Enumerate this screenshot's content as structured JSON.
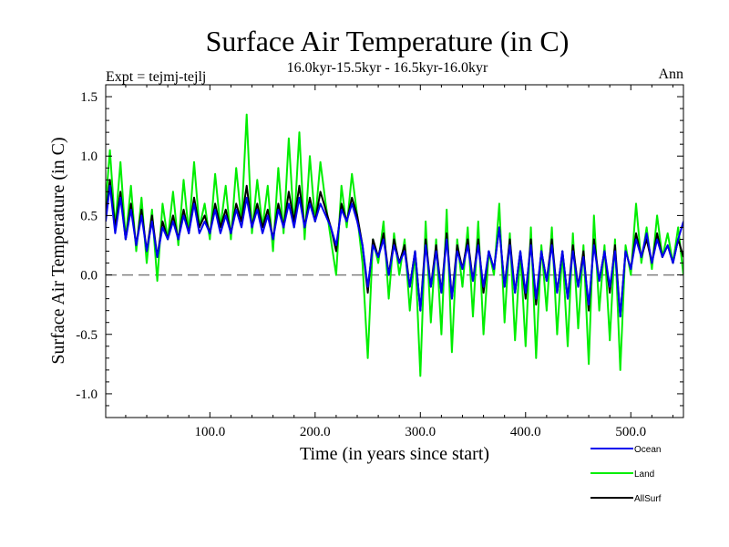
{
  "chart_data": {
    "type": "line",
    "title": "Surface Air Temperature (in C)",
    "subtitle": "16.0kyr-15.5kyr - 16.5kyr-16.0kyr",
    "left_note": "Expt = tejmj-tejlj",
    "right_note": "Ann",
    "xlabel": "Time (in years since start)",
    "ylabel": "Surface Air Temperature (in C)",
    "xlim": [
      1,
      550
    ],
    "ylim": [
      -1.2,
      1.6
    ],
    "xticks": [
      100,
      200,
      300,
      400,
      500
    ],
    "xtick_labels": [
      "100.0",
      "200.0",
      "300.0",
      "400.0",
      "500.0"
    ],
    "yticks": [
      -1.0,
      -0.5,
      0.0,
      0.5,
      1.0,
      1.5
    ],
    "ytick_labels": [
      "-1.0",
      "-0.5",
      "0.0",
      "0.5",
      "1.0",
      "1.5"
    ],
    "reference_line": 0.0,
    "legend_position": "bottom-right",
    "series": [
      {
        "name": "Land",
        "color": "#00ee00",
        "x": [
          1,
          5,
          10,
          15,
          20,
          25,
          30,
          35,
          40,
          45,
          50,
          55,
          60,
          65,
          70,
          75,
          80,
          85,
          90,
          95,
          100,
          105,
          110,
          115,
          120,
          125,
          130,
          135,
          140,
          145,
          150,
          155,
          160,
          165,
          170,
          175,
          180,
          185,
          190,
          195,
          200,
          205,
          210,
          215,
          220,
          225,
          230,
          235,
          240,
          245,
          250,
          255,
          260,
          265,
          270,
          275,
          280,
          285,
          290,
          295,
          300,
          305,
          310,
          315,
          320,
          325,
          330,
          335,
          340,
          345,
          350,
          355,
          360,
          365,
          370,
          375,
          380,
          385,
          390,
          395,
          400,
          405,
          410,
          415,
          420,
          425,
          430,
          435,
          440,
          445,
          450,
          455,
          460,
          465,
          470,
          475,
          480,
          485,
          490,
          495,
          500,
          505,
          510,
          515,
          520,
          525,
          530,
          535,
          540,
          545,
          550
        ],
        "values": [
          0.6,
          1.05,
          0.4,
          0.95,
          0.3,
          0.75,
          0.2,
          0.65,
          0.1,
          0.55,
          -0.05,
          0.6,
          0.3,
          0.7,
          0.25,
          0.8,
          0.35,
          0.95,
          0.4,
          0.6,
          0.3,
          0.85,
          0.4,
          0.75,
          0.3,
          0.9,
          0.45,
          1.35,
          0.35,
          0.8,
          0.4,
          0.75,
          0.2,
          0.9,
          0.35,
          1.15,
          0.4,
          1.2,
          0.3,
          1.0,
          0.45,
          0.95,
          0.6,
          0.3,
          0.0,
          0.75,
          0.4,
          0.85,
          0.5,
          0.1,
          -0.7,
          0.3,
          0.1,
          0.45,
          -0.2,
          0.35,
          0.0,
          0.3,
          -0.3,
          0.2,
          -0.85,
          0.45,
          -0.4,
          0.3,
          -0.5,
          0.55,
          -0.65,
          0.3,
          -0.1,
          0.4,
          -0.35,
          0.45,
          -0.5,
          0.2,
          0.0,
          0.6,
          -0.4,
          0.35,
          -0.55,
          0.2,
          -0.6,
          0.4,
          -0.7,
          0.25,
          -0.3,
          0.4,
          -0.5,
          0.2,
          -0.6,
          0.35,
          -0.45,
          0.25,
          -0.75,
          0.5,
          -0.3,
          0.25,
          -0.55,
          0.3,
          -0.8,
          0.25,
          0.0,
          0.6,
          0.1,
          0.4,
          0.05,
          0.5,
          0.15,
          0.35,
          0.1,
          0.4,
          0.0
        ]
      },
      {
        "name": "AllSurf",
        "color": "#000000",
        "x": [
          1,
          5,
          10,
          15,
          20,
          25,
          30,
          35,
          40,
          45,
          50,
          55,
          60,
          65,
          70,
          75,
          80,
          85,
          90,
          95,
          100,
          105,
          110,
          115,
          120,
          125,
          130,
          135,
          140,
          145,
          150,
          155,
          160,
          165,
          170,
          175,
          180,
          185,
          190,
          195,
          200,
          205,
          210,
          215,
          220,
          225,
          230,
          235,
          240,
          245,
          250,
          255,
          260,
          265,
          270,
          275,
          280,
          285,
          290,
          295,
          300,
          305,
          310,
          315,
          320,
          325,
          330,
          335,
          340,
          345,
          350,
          355,
          360,
          365,
          370,
          375,
          380,
          385,
          390,
          395,
          400,
          405,
          410,
          415,
          420,
          425,
          430,
          435,
          440,
          445,
          450,
          455,
          460,
          465,
          470,
          475,
          480,
          485,
          490,
          495,
          500,
          505,
          510,
          515,
          520,
          525,
          530,
          535,
          540,
          545,
          550
        ],
        "values": [
          0.5,
          0.8,
          0.4,
          0.7,
          0.3,
          0.6,
          0.25,
          0.55,
          0.2,
          0.5,
          0.15,
          0.45,
          0.3,
          0.5,
          0.3,
          0.55,
          0.35,
          0.65,
          0.4,
          0.5,
          0.35,
          0.6,
          0.4,
          0.55,
          0.35,
          0.6,
          0.45,
          0.75,
          0.4,
          0.6,
          0.4,
          0.55,
          0.3,
          0.6,
          0.4,
          0.7,
          0.45,
          0.75,
          0.4,
          0.65,
          0.45,
          0.7,
          0.55,
          0.4,
          0.2,
          0.6,
          0.45,
          0.65,
          0.5,
          0.25,
          -0.15,
          0.3,
          0.15,
          0.35,
          0.0,
          0.3,
          0.1,
          0.25,
          -0.1,
          0.2,
          -0.3,
          0.3,
          -0.1,
          0.25,
          -0.15,
          0.35,
          -0.2,
          0.25,
          0.05,
          0.3,
          -0.05,
          0.3,
          -0.15,
          0.2,
          0.05,
          0.4,
          -0.1,
          0.3,
          -0.15,
          0.2,
          -0.2,
          0.3,
          -0.25,
          0.2,
          -0.05,
          0.3,
          -0.15,
          0.2,
          -0.2,
          0.25,
          -0.1,
          0.2,
          -0.3,
          0.3,
          -0.05,
          0.2,
          -0.15,
          0.25,
          -0.35,
          0.2,
          0.05,
          0.35,
          0.15,
          0.3,
          0.1,
          0.35,
          0.15,
          0.25,
          0.1,
          0.3,
          0.15
        ]
      },
      {
        "name": "Ocean",
        "color": "#0000ee",
        "x": [
          1,
          5,
          10,
          15,
          20,
          25,
          30,
          35,
          40,
          45,
          50,
          55,
          60,
          65,
          70,
          75,
          80,
          85,
          90,
          95,
          100,
          105,
          110,
          115,
          120,
          125,
          130,
          135,
          140,
          145,
          150,
          155,
          160,
          165,
          170,
          175,
          180,
          185,
          190,
          195,
          200,
          205,
          210,
          215,
          220,
          225,
          230,
          235,
          240,
          245,
          250,
          255,
          260,
          265,
          270,
          275,
          280,
          285,
          290,
          295,
          300,
          305,
          310,
          315,
          320,
          325,
          330,
          335,
          340,
          345,
          350,
          355,
          360,
          365,
          370,
          375,
          380,
          385,
          390,
          395,
          400,
          405,
          410,
          415,
          420,
          425,
          430,
          435,
          440,
          445,
          450,
          455,
          460,
          465,
          470,
          475,
          480,
          485,
          490,
          495,
          500,
          505,
          510,
          515,
          520,
          525,
          530,
          535,
          540,
          545,
          550
        ],
        "values": [
          0.45,
          0.75,
          0.35,
          0.65,
          0.3,
          0.55,
          0.25,
          0.5,
          0.2,
          0.45,
          0.15,
          0.4,
          0.3,
          0.45,
          0.3,
          0.5,
          0.35,
          0.6,
          0.35,
          0.45,
          0.35,
          0.55,
          0.35,
          0.5,
          0.35,
          0.55,
          0.4,
          0.65,
          0.4,
          0.55,
          0.35,
          0.5,
          0.3,
          0.55,
          0.4,
          0.6,
          0.4,
          0.65,
          0.4,
          0.6,
          0.45,
          0.6,
          0.5,
          0.4,
          0.25,
          0.55,
          0.45,
          0.6,
          0.45,
          0.25,
          -0.1,
          0.25,
          0.15,
          0.3,
          0.0,
          0.25,
          0.1,
          0.2,
          -0.1,
          0.2,
          -0.3,
          0.25,
          -0.1,
          0.2,
          -0.15,
          0.3,
          -0.2,
          0.2,
          0.05,
          0.25,
          -0.05,
          0.25,
          -0.1,
          0.2,
          0.05,
          0.4,
          -0.1,
          0.25,
          -0.15,
          0.2,
          -0.15,
          0.25,
          -0.2,
          0.2,
          -0.05,
          0.25,
          -0.15,
          0.2,
          -0.2,
          0.2,
          -0.1,
          0.15,
          -0.25,
          0.25,
          -0.05,
          0.2,
          -0.1,
          0.2,
          -0.35,
          0.2,
          0.05,
          0.3,
          0.15,
          0.35,
          0.1,
          0.3,
          0.15,
          0.25,
          0.1,
          0.3,
          0.45
        ]
      }
    ],
    "legend": [
      {
        "name": "Ocean",
        "color": "#0000ee"
      },
      {
        "name": "Land",
        "color": "#00ee00"
      },
      {
        "name": "AllSurf",
        "color": "#000000"
      }
    ]
  }
}
